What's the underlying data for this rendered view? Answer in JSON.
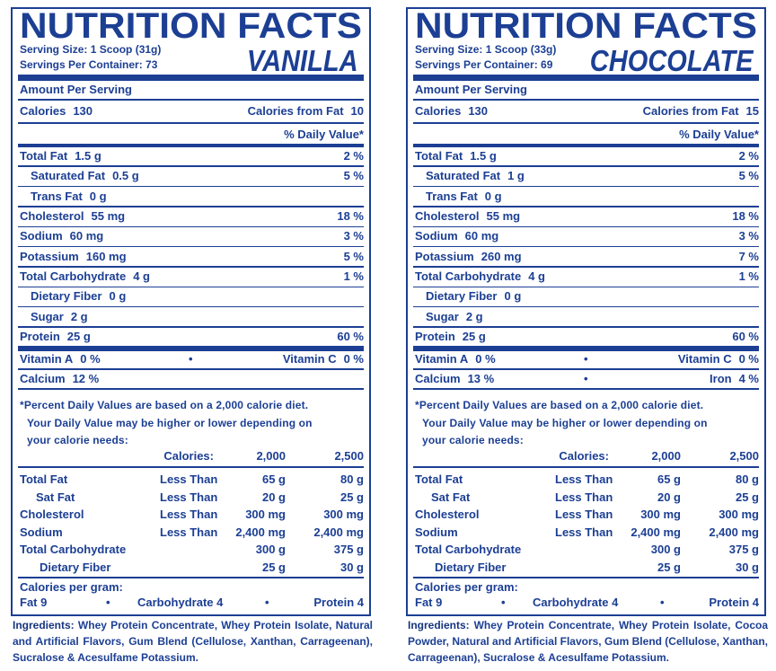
{
  "panels": [
    {
      "title": "NUTRITION FACTS",
      "flavor": "VANILLA",
      "serving_size": "Serving Size: 1 Scoop (31g)",
      "servings_per_container": "Servings Per Container: 73",
      "amount_per_serving": "Amount Per Serving",
      "calories": {
        "label": "Calories",
        "value": "130",
        "fat_label": "Calories from Fat",
        "fat_value": "10"
      },
      "dv_header": "% Daily Value*",
      "nutrients": [
        {
          "label": "Total Fat",
          "amount": "1.5 g",
          "dv": "2 %"
        },
        {
          "label": "Saturated Fat",
          "amount": "0.5 g",
          "dv": "5 %"
        },
        {
          "label": "Trans Fat",
          "amount": "0 g"
        },
        {
          "label": "Cholesterol",
          "amount": "55 mg",
          "dv": "18 %"
        },
        {
          "label": "Sodium",
          "amount": "60 mg",
          "dv": "3 %"
        },
        {
          "label": "Potassium",
          "amount": "160 mg",
          "dv": "5 %"
        },
        {
          "label": "Total Carbohydrate",
          "amount": "4 g",
          "dv": "1 %"
        },
        {
          "label": "Dietary Fiber",
          "amount": "0 g"
        },
        {
          "label": "Sugar",
          "amount": "2 g"
        },
        {
          "label": "Protein",
          "amount": "25 g",
          "dv": "60 %"
        }
      ],
      "vitamins": [
        [
          {
            "label": "Vitamin A",
            "dv": "0 %"
          },
          {
            "label": "Vitamin C",
            "dv": "0 %"
          }
        ],
        [
          {
            "label": "Calcium",
            "dv": "12 %"
          }
        ]
      ],
      "footnote": [
        "*Percent Daily Values are based on a 2,000 calorie diet.",
        "Your Daily Value may be higher or lower depending on",
        "your calorie needs:"
      ],
      "dv_table": {
        "header": [
          "Calories:",
          "2,000",
          "2,500"
        ],
        "rows": [
          {
            "nutrient": "Total Fat",
            "limit": "Less Than",
            "v2000": "65 g",
            "v2500": "80 g"
          },
          {
            "nutrient": "Sat Fat",
            "limit": "Less Than",
            "v2000": "20 g",
            "v2500": "25 g"
          },
          {
            "nutrient": "Cholesterol",
            "limit": "Less Than",
            "v2000": "300 mg",
            "v2500": "300 mg"
          },
          {
            "nutrient": "Sodium",
            "limit": "Less Than",
            "v2000": "2,400 mg",
            "v2500": "2,400 mg"
          },
          {
            "nutrient": "Total Carbohydrate",
            "v2000": "300 g",
            "v2500": "375 g"
          },
          {
            "nutrient": "Dietary Fiber",
            "v2000": "25 g",
            "v2500": "30 g"
          }
        ]
      },
      "calories_per_gram": {
        "label": "Calories per gram:",
        "items": [
          "Fat 9",
          "Carbohydrate 4",
          "Protein 4"
        ]
      },
      "ingredients": {
        "label": "Ingredients:",
        "text": "Whey Protein Concentrate, Whey Protein Isolate, Natural and Artificial Flavors, Gum Blend (Cellulose, Xanthan, Carrageenan), Sucralose & Acesulfame Potassium."
      }
    },
    {
      "title": "NUTRITION FACTS",
      "flavor": "CHOCOLATE",
      "serving_size": "Serving Size: 1 Scoop (33g)",
      "servings_per_container": "Servings Per Container: 69",
      "amount_per_serving": "Amount Per Serving",
      "calories": {
        "label": "Calories",
        "value": "130",
        "fat_label": "Calories from Fat",
        "fat_value": "15"
      },
      "dv_header": "% Daily Value*",
      "nutrients": [
        {
          "label": "Total Fat",
          "amount": "1.5 g",
          "dv": "2 %"
        },
        {
          "label": "Saturated Fat",
          "amount": "1 g",
          "dv": "5 %"
        },
        {
          "label": "Trans Fat",
          "amount": "0 g"
        },
        {
          "label": "Cholesterol",
          "amount": "55 mg",
          "dv": "18 %"
        },
        {
          "label": "Sodium",
          "amount": "60 mg",
          "dv": "3 %"
        },
        {
          "label": "Potassium",
          "amount": "260 mg",
          "dv": "7 %"
        },
        {
          "label": "Total Carbohydrate",
          "amount": "4 g",
          "dv": "1 %"
        },
        {
          "label": "Dietary Fiber",
          "amount": "0 g"
        },
        {
          "label": "Sugar",
          "amount": "2 g"
        },
        {
          "label": "Protein",
          "amount": "25 g",
          "dv": "60 %"
        }
      ],
      "vitamins": [
        [
          {
            "label": "Vitamin A",
            "dv": "0 %"
          },
          {
            "label": "Vitamin C",
            "dv": "0 %"
          }
        ],
        [
          {
            "label": "Calcium",
            "dv": "13 %"
          },
          {
            "label": "Iron",
            "dv": "4 %"
          }
        ]
      ],
      "footnote": [
        "*Percent Daily Values are based on a 2,000 calorie diet.",
        "Your Daily Value may be higher or lower depending on",
        "your calorie needs:"
      ],
      "dv_table": {
        "header": [
          "Calories:",
          "2,000",
          "2,500"
        ],
        "rows": [
          {
            "nutrient": "Total Fat",
            "limit": "Less Than",
            "v2000": "65 g",
            "v2500": "80 g"
          },
          {
            "nutrient": "Sat Fat",
            "limit": "Less Than",
            "v2000": "20 g",
            "v2500": "25 g"
          },
          {
            "nutrient": "Cholesterol",
            "limit": "Less Than",
            "v2000": "300 mg",
            "v2500": "300 mg"
          },
          {
            "nutrient": "Sodium",
            "limit": "Less Than",
            "v2000": "2,400 mg",
            "v2500": "2,400 mg"
          },
          {
            "nutrient": "Total Carbohydrate",
            "v2000": "300 g",
            "v2500": "375 g"
          },
          {
            "nutrient": "Dietary Fiber",
            "v2000": "25 g",
            "v2500": "30 g"
          }
        ]
      },
      "calories_per_gram": {
        "label": "Calories per gram:",
        "items": [
          "Fat 9",
          "Carbohydrate 4",
          "Protein 4"
        ]
      },
      "ingredients": {
        "label": "Ingredients:",
        "text": "Whey Protein Concentrate, Whey Protein Isolate, Cocoa Powder, Natural and Artificial Flavors, Gum Blend (Cellulose, Xanthan, Carrageenan), Sucralose & Acesulfame Potassium."
      }
    }
  ]
}
